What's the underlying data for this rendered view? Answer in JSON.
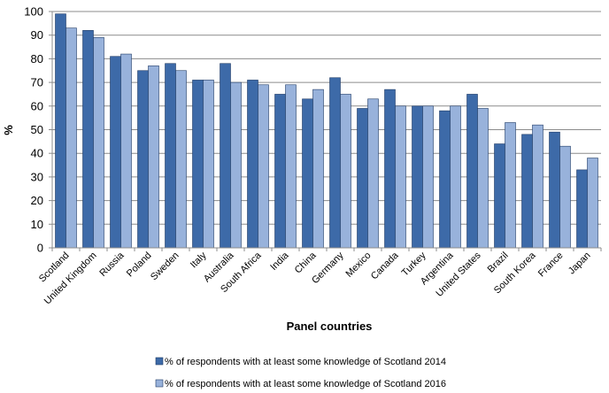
{
  "chart_data": {
    "type": "bar",
    "title": "",
    "xlabel": "Panel countries",
    "ylabel": "%",
    "ylim": [
      0,
      100
    ],
    "yticks": [
      0,
      10,
      20,
      30,
      40,
      50,
      60,
      70,
      80,
      90,
      100
    ],
    "grid": true,
    "legend_position": "bottom",
    "categories": [
      "Scotland",
      "United Kingdom",
      "Russia",
      "Poland",
      "Sweden",
      "Italy",
      "Australia",
      "South Africa",
      "India",
      "China",
      "Germany",
      "Mexico",
      "Canada",
      "Turkey",
      "Argentina",
      "United States",
      "Brazil",
      "South Korea",
      "France",
      "Japan"
    ],
    "series": [
      {
        "name": "% of respondents with at least some knowledge of Scotland 2014",
        "color": "#3d6aa8",
        "values": [
          99,
          92,
          81,
          75,
          78,
          71,
          78,
          71,
          65,
          63,
          72,
          59,
          67,
          60,
          58,
          65,
          44,
          48,
          49,
          33
        ]
      },
      {
        "name": "% of respondents with at least some knowledge of Scotland 2016",
        "color": "#98b2db",
        "values": [
          93,
          89,
          82,
          77,
          75,
          71,
          70,
          69,
          69,
          67,
          65,
          63,
          60,
          60,
          60,
          59,
          53,
          52,
          43,
          38
        ]
      }
    ]
  }
}
